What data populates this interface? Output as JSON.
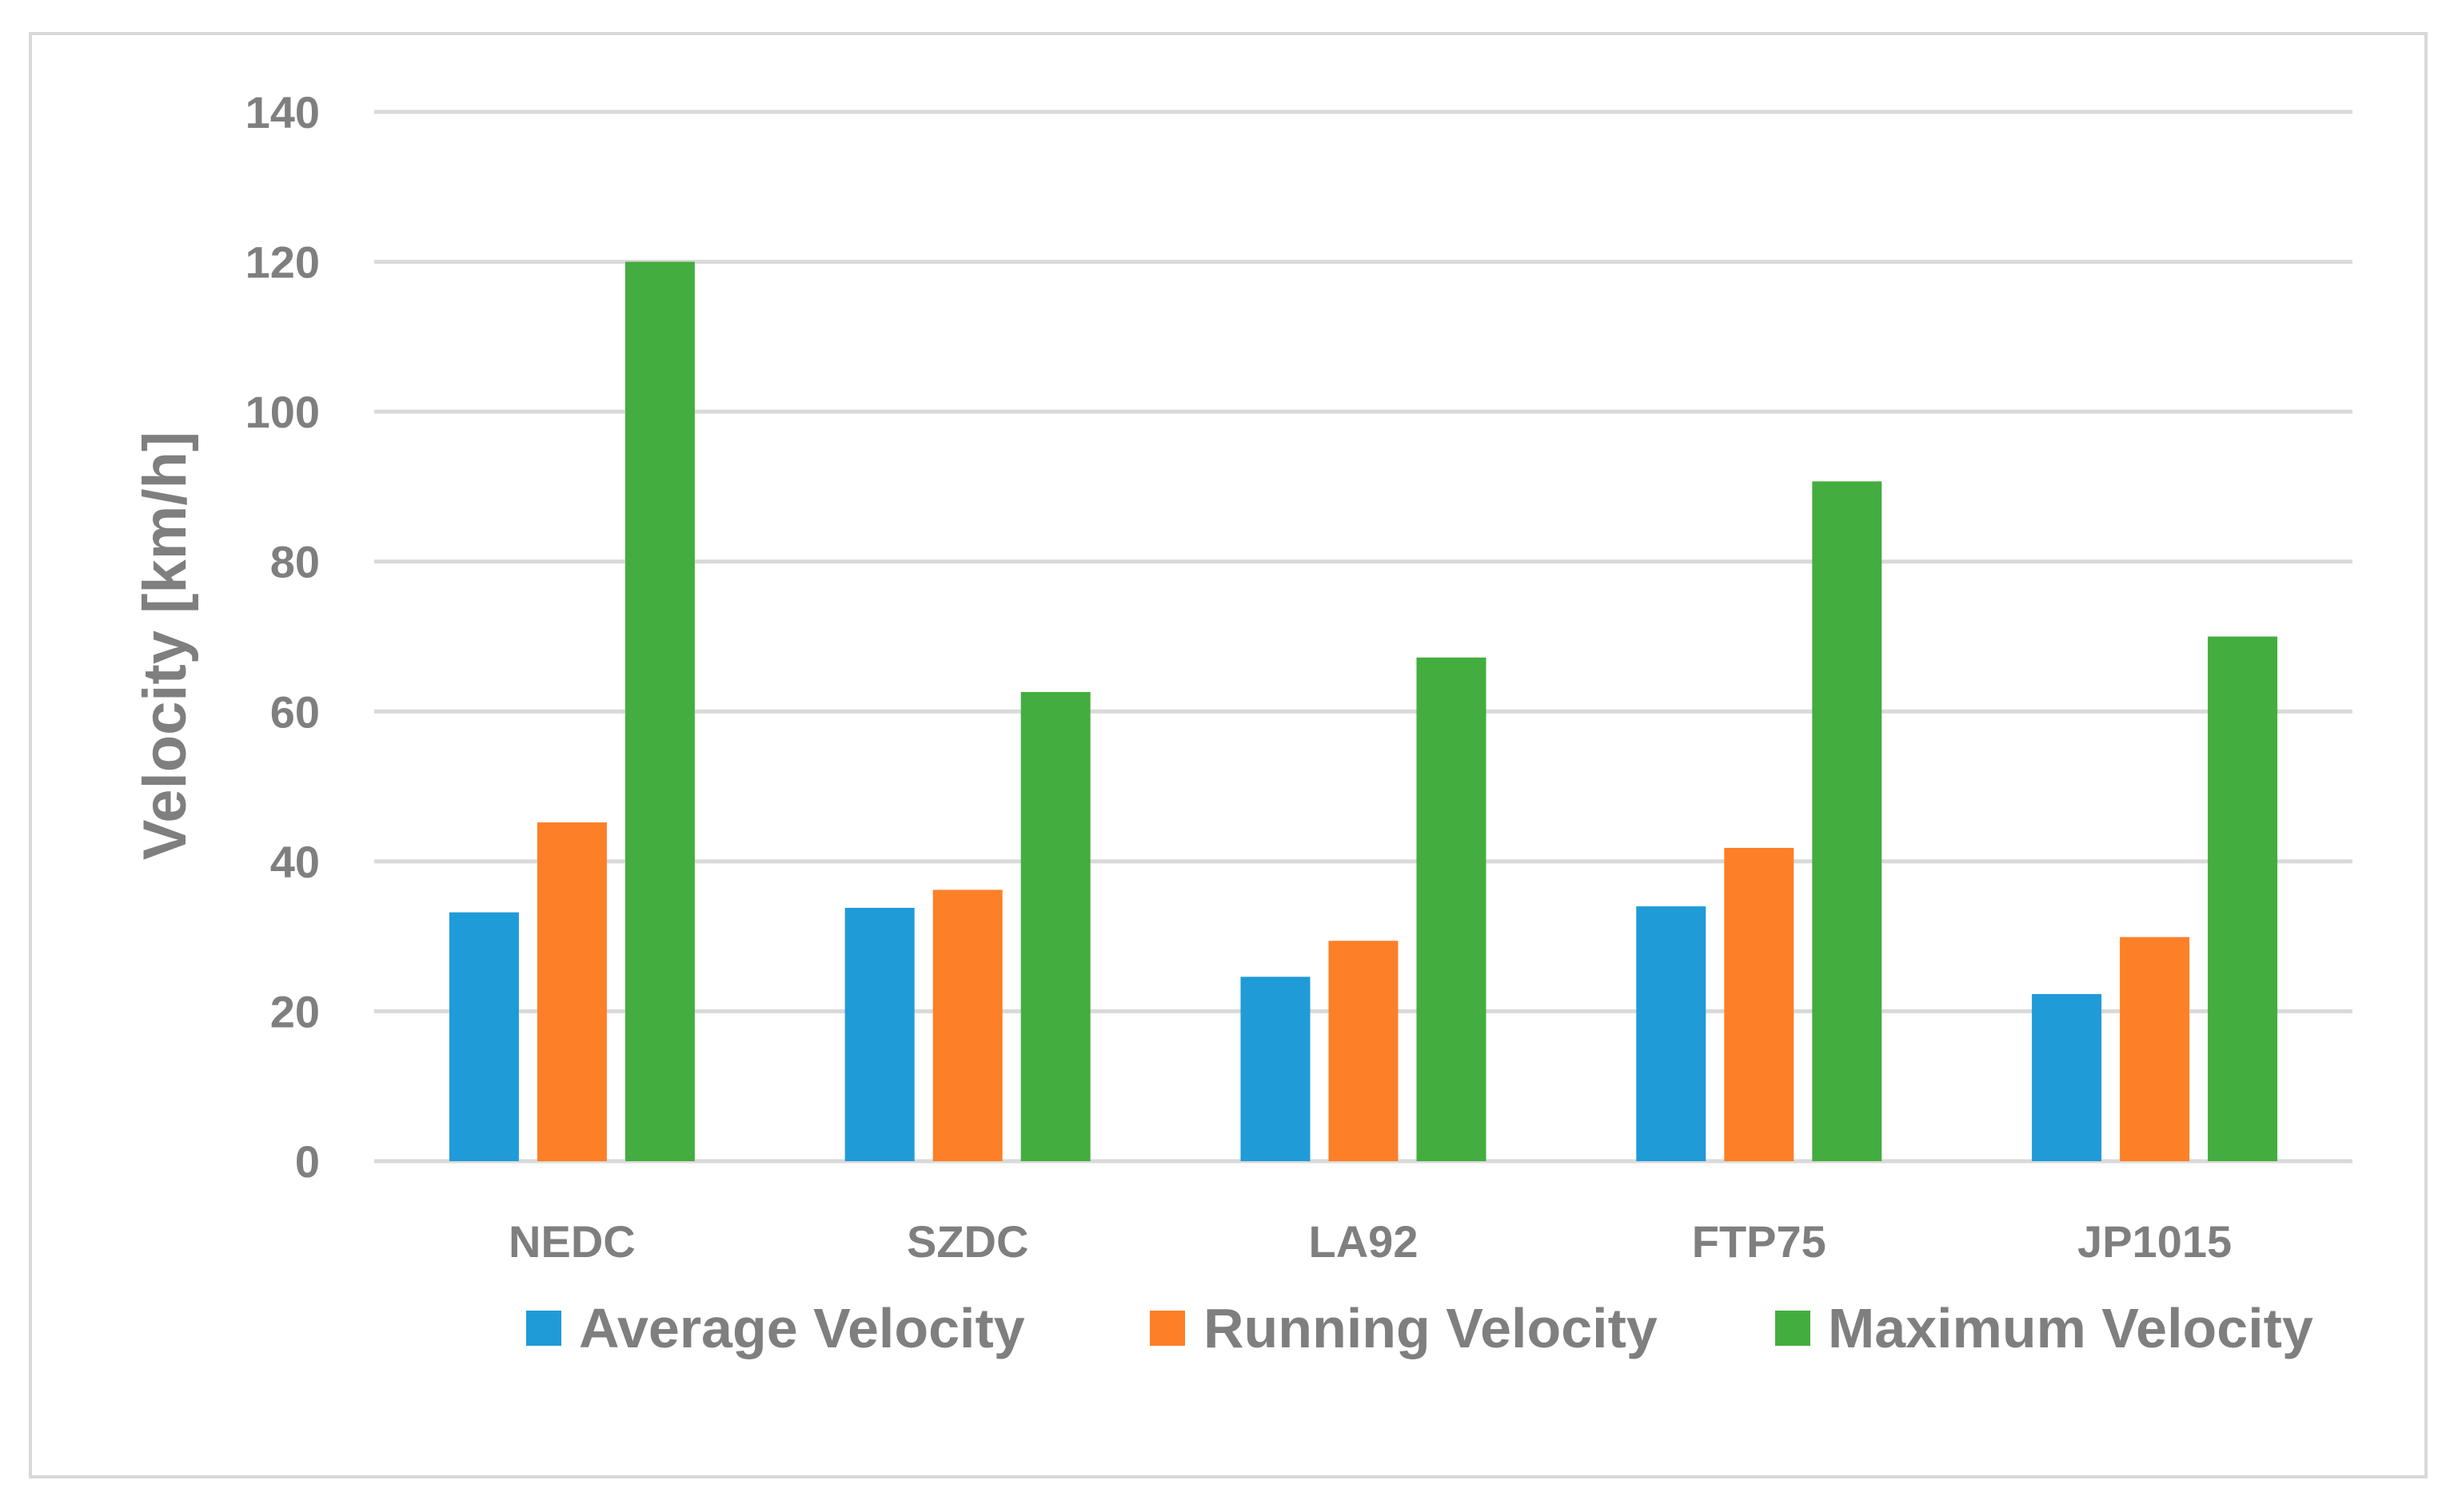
{
  "chart_data": {
    "type": "bar",
    "title": "",
    "xlabel": "",
    "ylabel": "Velocity [km/h]",
    "ylim": [
      0,
      140
    ],
    "yticks": [
      0,
      20,
      40,
      60,
      80,
      100,
      120,
      140
    ],
    "grid": true,
    "legend_position": "bottom",
    "categories": [
      "NEDC",
      "SZDC",
      "LA92",
      "FTP75",
      "JP1015"
    ],
    "series": [
      {
        "name": "Average Velocity",
        "color": "#1f9bd7",
        "values": [
          33.2,
          33.8,
          24.6,
          34.0,
          22.3
        ]
      },
      {
        "name": "Running Velocity",
        "color": "#fd7f27",
        "values": [
          45.2,
          36.2,
          29.4,
          41.8,
          29.9
        ]
      },
      {
        "name": "Maximum Velocity",
        "color": "#43ad3f",
        "values": [
          120.0,
          62.6,
          67.2,
          90.7,
          70.0
        ]
      }
    ]
  }
}
